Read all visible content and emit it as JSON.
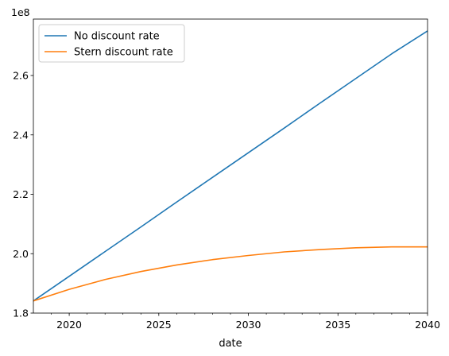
{
  "chart_data": {
    "type": "line",
    "xlabel": "date",
    "ylabel": "",
    "y_offset_label": "1e8",
    "xlim": [
      2018,
      2040
    ],
    "ylim": [
      1.8,
      2.79
    ],
    "x_ticks": [
      2020,
      2025,
      2030,
      2035,
      2040
    ],
    "x_tick_labels": [
      "2020",
      "2025",
      "2030",
      "2035",
      "2040"
    ],
    "x_minor_ticks": [
      2019,
      2021,
      2022,
      2023,
      2024,
      2026,
      2027,
      2028,
      2029,
      2031,
      2032,
      2033,
      2034,
      2036,
      2037,
      2038,
      2039
    ],
    "y_ticks": [
      1.8,
      2.0,
      2.2,
      2.4,
      2.6
    ],
    "y_tick_labels": [
      "1.8",
      "2.0",
      "2.2",
      "2.4",
      "2.6"
    ],
    "grid": false,
    "legend_position": "top-left",
    "series": [
      {
        "name": "No discount rate",
        "color": "#1f77b4",
        "x": [
          2018,
          2020,
          2022,
          2024,
          2026,
          2028,
          2030,
          2032,
          2034,
          2036,
          2038,
          2040
        ],
        "y": [
          1.841,
          1.924,
          2.007,
          2.09,
          2.174,
          2.257,
          2.34,
          2.423,
          2.507,
          2.59,
          2.673,
          2.75
        ]
      },
      {
        "name": "Stern discount rate",
        "color": "#ff7f0e",
        "x": [
          2018,
          2020,
          2022,
          2024,
          2026,
          2028,
          2030,
          2032,
          2034,
          2036,
          2038,
          2040
        ],
        "y": [
          1.841,
          1.88,
          1.913,
          1.94,
          1.962,
          1.98,
          1.994,
          2.006,
          2.014,
          2.02,
          2.023,
          2.023
        ]
      }
    ]
  }
}
